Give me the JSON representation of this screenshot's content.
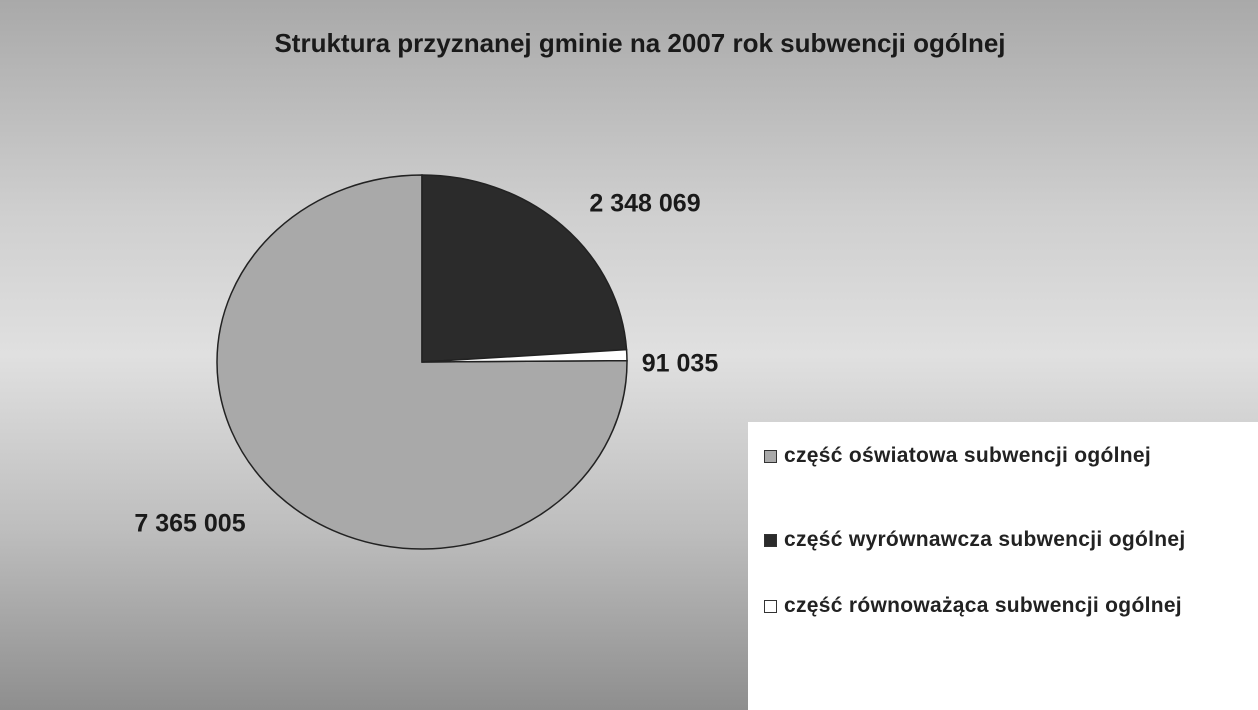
{
  "chart_data": {
    "type": "pie",
    "title": "Struktura przyznanej gminie na 2007 rok subwencji ogólnej",
    "categories": [
      "część oświatowa subwencji ogólnej",
      "część wyrównawcza subwencji ogólnej",
      "część równoważąca subwencji ogólnej"
    ],
    "values": [
      7365005,
      2348069,
      91035
    ],
    "value_labels": [
      "7 365 005",
      "2 348 069",
      "91 035"
    ],
    "colors": [
      "#a9a9a9",
      "#2b2b2b",
      "#ffffff"
    ],
    "legend": "bottom-right"
  }
}
